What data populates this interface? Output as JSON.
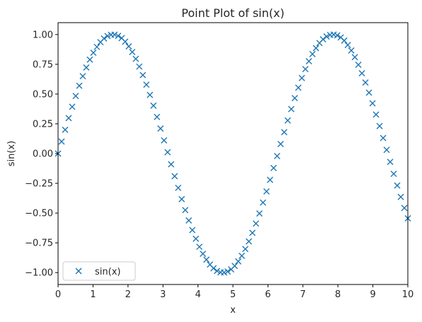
{
  "chart_data": {
    "type": "scatter",
    "title": "Point Plot of sin(x)",
    "xlabel": "x",
    "ylabel": "sin(x)",
    "xlim": [
      0,
      10
    ],
    "ylim": [
      -1.1,
      1.1
    ],
    "x_ticks": [
      0,
      1,
      2,
      3,
      4,
      5,
      6,
      7,
      8,
      9,
      10
    ],
    "x_tick_labels": [
      "0",
      "1",
      "2",
      "3",
      "4",
      "5",
      "6",
      "7",
      "8",
      "9",
      "10"
    ],
    "y_ticks": [
      -1.0,
      -0.75,
      -0.5,
      -0.25,
      0.0,
      0.25,
      0.5,
      0.75,
      1.0
    ],
    "y_tick_labels": [
      "−1.00",
      "−0.75",
      "−0.50",
      "−0.25",
      "0.00",
      "0.25",
      "0.50",
      "0.75",
      "1.00"
    ],
    "grid": false,
    "legend_position": "lower-left",
    "series": [
      {
        "name": "sin(x)",
        "marker": "x",
        "color": "#1f77b4",
        "x": [
          0,
          0.101,
          0.202,
          0.303,
          0.404,
          0.505,
          0.606,
          0.707,
          0.808,
          0.909,
          1.01,
          1.111,
          1.212,
          1.313,
          1.414,
          1.515,
          1.616,
          1.717,
          1.818,
          1.919,
          2.02,
          2.121,
          2.222,
          2.323,
          2.424,
          2.525,
          2.626,
          2.727,
          2.828,
          2.929,
          3.03,
          3.131,
          3.232,
          3.333,
          3.434,
          3.535,
          3.636,
          3.737,
          3.838,
          3.939,
          4.04,
          4.141,
          4.242,
          4.343,
          4.444,
          4.545,
          4.646,
          4.747,
          4.848,
          4.949,
          5.051,
          5.152,
          5.253,
          5.354,
          5.455,
          5.556,
          5.657,
          5.758,
          5.859,
          5.96,
          6.061,
          6.162,
          6.263,
          6.364,
          6.465,
          6.566,
          6.667,
          6.768,
          6.869,
          6.97,
          7.071,
          7.172,
          7.273,
          7.374,
          7.475,
          7.576,
          7.677,
          7.778,
          7.879,
          7.98,
          8.081,
          8.182,
          8.283,
          8.384,
          8.485,
          8.586,
          8.687,
          8.788,
          8.889,
          8.99,
          9.091,
          9.192,
          9.293,
          9.394,
          9.495,
          9.596,
          9.697,
          9.798,
          9.899,
          10
        ],
        "y": [
          0,
          0.101,
          0.2,
          0.298,
          0.393,
          0.484,
          0.57,
          0.65,
          0.723,
          0.789,
          0.847,
          0.896,
          0.936,
          0.967,
          0.988,
          0.998,
          0.999,
          0.989,
          0.97,
          0.94,
          0.901,
          0.853,
          0.796,
          0.731,
          0.659,
          0.579,
          0.493,
          0.403,
          0.308,
          0.21,
          0.111,
          0.011,
          -0.09,
          -0.19,
          -0.288,
          -0.383,
          -0.475,
          -0.562,
          -0.643,
          -0.716,
          -0.783,
          -0.842,
          -0.891,
          -0.932,
          -0.964,
          -0.986,
          -0.998,
          -0.999,
          -0.991,
          -0.973,
          -0.944,
          -0.906,
          -0.859,
          -0.802,
          -0.738,
          -0.666,
          -0.588,
          -0.503,
          -0.412,
          -0.318,
          -0.221,
          -0.121,
          -0.021,
          0.08,
          0.18,
          0.278,
          0.374,
          0.466,
          0.554,
          0.635,
          0.71,
          0.776,
          0.836,
          0.886,
          0.928,
          0.96,
          0.983,
          0.997,
          1.0,
          0.993,
          0.976,
          0.949,
          0.912,
          0.866,
          0.81,
          0.746,
          0.675,
          0.597,
          0.512,
          0.422,
          0.328,
          0.231,
          0.131,
          0.031,
          -0.07,
          -0.17,
          -0.268,
          -0.364,
          -0.457,
          -0.544
        ]
      }
    ]
  }
}
